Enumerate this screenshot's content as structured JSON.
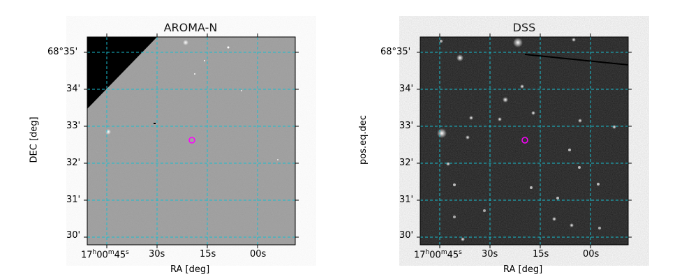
{
  "panels": [
    {
      "title": "AROMA-N",
      "xlabel": "RA [deg]",
      "ylabel": "DEC [deg]",
      "bg": "#9a9a9a",
      "has_black_corner": true
    },
    {
      "title": "DSS",
      "xlabel": "RA [deg]",
      "ylabel": "pos.eq.dec",
      "bg": "#1c1c1c",
      "has_black_corner": false
    }
  ],
  "ra_ticks": [
    {
      "h": "17",
      "m": "00",
      "s": "45",
      "label": "17h00m45s"
    },
    {
      "label": "30s"
    },
    {
      "label": "15s"
    },
    {
      "label": "00s"
    }
  ],
  "dec_ticks": [
    "68°35'",
    "34'",
    "33'",
    "32'",
    "31'",
    "30'"
  ],
  "colors": {
    "grid": "#17becf",
    "marker": "#ff00ff"
  }
}
